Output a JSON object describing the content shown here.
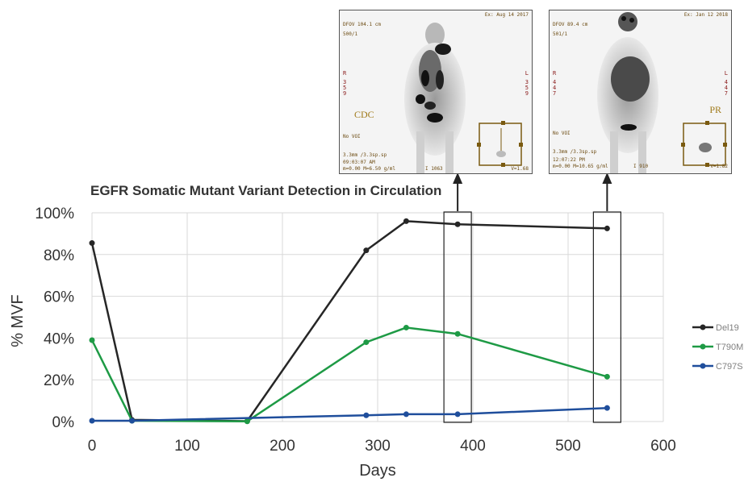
{
  "chart_data": {
    "type": "line",
    "title": "EGFR Somatic Mutant Variant Detection in Circulation",
    "xlabel": "Days",
    "ylabel": "% MVF",
    "xlim": [
      0,
      600
    ],
    "ylim": [
      0,
      100
    ],
    "xticks": [
      "0",
      "100",
      "200",
      "300",
      "400",
      "500",
      "600"
    ],
    "yticks": [
      "0%",
      "20%",
      "40%",
      "60%",
      "80%",
      "100%"
    ],
    "grid": true,
    "legend_position": "right",
    "series": [
      {
        "name": "Del19",
        "color": "#262626",
        "x": [
          0,
          42,
          163,
          288,
          330,
          384,
          541
        ],
        "y": [
          85.5,
          0.8,
          0.2,
          82,
          96,
          94.5,
          92.5
        ]
      },
      {
        "name": "T790M",
        "color": "#1e9a45",
        "x": [
          0,
          42,
          163,
          288,
          330,
          384,
          541
        ],
        "y": [
          39,
          0.4,
          0.1,
          38,
          45,
          42,
          21.5
        ]
      },
      {
        "name": "C797S",
        "color": "#1f4e9c",
        "x": [
          0,
          42,
          288,
          330,
          384,
          541
        ],
        "y": [
          0.4,
          0.4,
          3,
          3.5,
          3.5,
          6.5
        ]
      }
    ],
    "highlight_days": [
      384,
      541
    ]
  },
  "pet_scans": [
    {
      "date": "Ex: Aug 14 2017",
      "line1": "DFOV 104.1 cm",
      "line2": "500/1",
      "left_marker": "R",
      "left_digits": "3\n5\n9",
      "right_marker": "L",
      "right_digits": "3\n5\n9",
      "label": "CDC",
      "vdi": "No VOI",
      "slice": "3.3mm /3.3sp.sp",
      "time": "09:03:07 AM",
      "window": "m=0.00 M=6.50 g/ml",
      "image_index": "I 1063",
      "version": "V=1.68"
    },
    {
      "date": "Ex: Jan 12 2018",
      "line1": "DFOV 89.4 cm",
      "line2": "501/1",
      "left_marker": "R",
      "left_digits": "4\n4\n7",
      "right_marker": "L",
      "right_digits": "4\n4\n7",
      "label": "PR",
      "vdi": "No VOI",
      "slice": "3.3mm /3.3sp.sp",
      "time": "12:07:22 PM",
      "window": "m=0.00 M=10.65 g/ml",
      "image_index": "I 910",
      "version": "V=1.82"
    }
  ]
}
